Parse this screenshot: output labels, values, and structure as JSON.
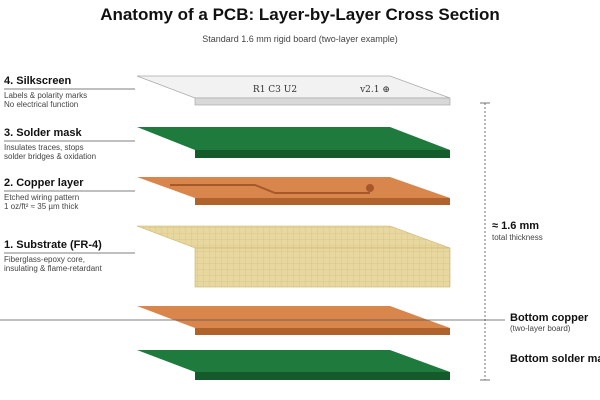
{
  "header": {
    "title": "Anatomy of a PCB: Layer-by-Layer Cross Section",
    "subtitle": "Standard 1.6 mm rigid board (two-layer example)"
  },
  "layers": [
    {
      "title": "4. Silkscreen",
      "desc": [
        "Labels & polarity marks",
        "No electrical function"
      ]
    },
    {
      "title": "3. Solder mask",
      "desc": [
        "Insulates traces, stops",
        "solder bridges & oxidation"
      ]
    },
    {
      "title": "2. Copper layer",
      "desc": [
        "Etched wiring pattern",
        "1 oz/ft² ≈ 35 µm thick"
      ]
    },
    {
      "title": "1. Substrate (FR-4)",
      "desc": [
        "Fiberglass-epoxy core,",
        "insulating & flame-retardant"
      ]
    }
  ],
  "silkscreen_marks": [
    "R1 C3 U2",
    "v2.1 ⊕"
  ],
  "thickness": {
    "label": "≈ 1.6 mm",
    "note": "total thickness"
  },
  "bottom": [
    {
      "title": "Bottom copper",
      "desc": "(two-layer board)"
    },
    {
      "title": "Bottom solder mask"
    }
  ]
}
